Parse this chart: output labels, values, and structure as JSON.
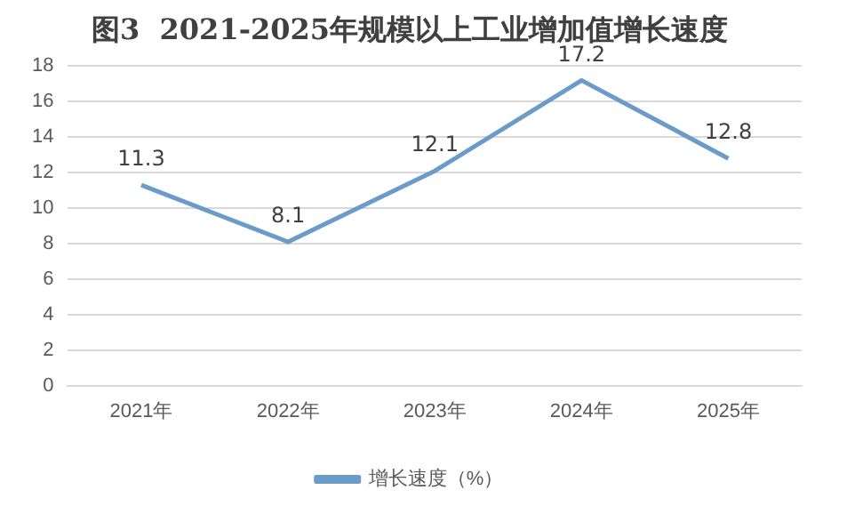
{
  "chart_data": {
    "type": "line",
    "title": "图3  2021-2025年规模以上工业增加值增长速度",
    "categories": [
      "2021年",
      "2022年",
      "2023年",
      "2024年",
      "2025年"
    ],
    "series": [
      {
        "name": "增长速度（%）",
        "color": "#6a9bc9",
        "values": [
          11.3,
          8.1,
          12.1,
          17.2,
          12.8
        ]
      }
    ],
    "ylim": [
      0,
      18
    ],
    "yticks": [
      0,
      2,
      4,
      6,
      8,
      10,
      12,
      14,
      16,
      18
    ],
    "grid": "y",
    "legend": "bottom",
    "data_labels": true,
    "marker": "none",
    "line_style": "solid"
  }
}
